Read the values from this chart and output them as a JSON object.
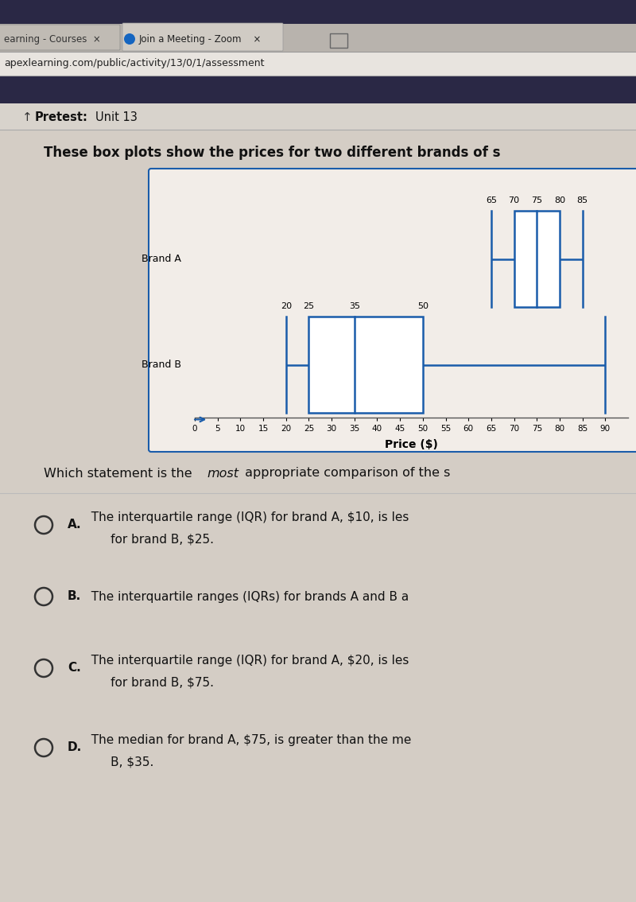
{
  "brand_a": {
    "min": 65,
    "q1": 70,
    "median": 75,
    "q3": 80,
    "max": 85,
    "label": "Brand A"
  },
  "brand_b": {
    "min": 20,
    "q1": 25,
    "median": 35,
    "q3": 50,
    "max": 90,
    "label": "Brand B"
  },
  "xmin": 0,
  "xmax": 95,
  "xticks": [
    0,
    5,
    10,
    15,
    20,
    25,
    30,
    35,
    40,
    45,
    50,
    55,
    60,
    65,
    70,
    75,
    80,
    85,
    90
  ],
  "xlabel": "Price ($)",
  "box_color": "#1a5caa",
  "box_face_color": "#ffffff",
  "bg_color": "#d4cdc5",
  "chart_bg": "#f0ece6",
  "header_bg": "#2a2845",
  "tab_bg": "#c8c3bc",
  "pretest_bar_bg": "#ccc8c2",
  "question_text": "These box plots show the prices for two different brands of s",
  "question2_text": "Which statement is the ",
  "question2_italic": "most",
  "question2_rest": " appropriate comparison of the s",
  "addr": "apexlearning.com/public/activity/13/0/1/assessment",
  "tab1": "earning - Courses  ×",
  "tab2": "Join a Meeting - Zoom    ×",
  "pretest_label": "Pretest:",
  "unit_label": "Unit 13",
  "ans_a_bold": "A.",
  "ans_a_text": "  The interquartile range (IQR) for brand A, $10, is les",
  "ans_a_text2": "       for brand B, $25.",
  "ans_b_bold": "B.",
  "ans_b_text": "  The interquartile ranges (IQRs) for brands A and B a",
  "ans_c_bold": "C.",
  "ans_c_text": "  The interquartile range (IQR) for brand A, $20, is les",
  "ans_c_text2": "       for brand B, $75.",
  "ans_d_bold": "D.",
  "ans_d_text": "  The median for brand A, $75, is greater than the me",
  "ans_d_text2": "       B, $35."
}
